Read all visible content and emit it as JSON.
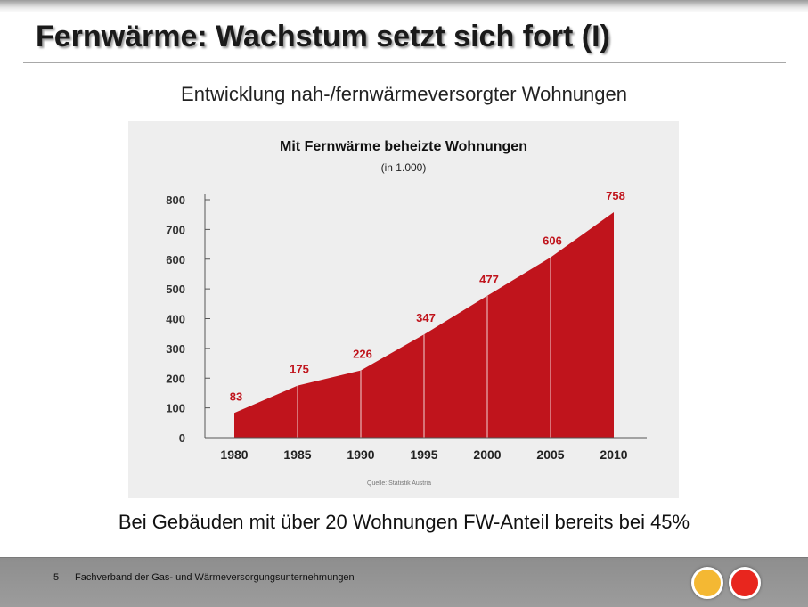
{
  "slide": {
    "title": "Fernwärme: Wachstum setzt sich fort (I)",
    "subtitle": "Entwicklung nah-/fernwärmeversorgter Wohnungen",
    "note": "Bei Gebäuden mit über 20 Wohnungen FW-Anteil bereits bei 45%"
  },
  "footer": {
    "page_number": "5",
    "organization": "Fachverband der Gas- und Wärmeversorgungsunternehmungen"
  },
  "colors": {
    "area_fill": "#c0141c",
    "accent_orange": "#f4b833",
    "accent_red": "#e8261e"
  },
  "chart_data": {
    "type": "area",
    "title": "Mit Fernwärme beheizte Wohnungen",
    "subtitle": "(in 1.000)",
    "source": "Quelle: Statistik Austria",
    "x": [
      "1980",
      "1985",
      "1990",
      "1995",
      "2000",
      "2005",
      "2010"
    ],
    "values": [
      83,
      175,
      226,
      347,
      477,
      606,
      758
    ],
    "data_labels": [
      "83",
      "175",
      "226",
      "347",
      "477",
      "606",
      "758"
    ],
    "yticks": [
      0,
      100,
      200,
      300,
      400,
      500,
      600,
      700,
      800
    ],
    "ylim": [
      0,
      800
    ],
    "grid": false,
    "legend": "none"
  }
}
